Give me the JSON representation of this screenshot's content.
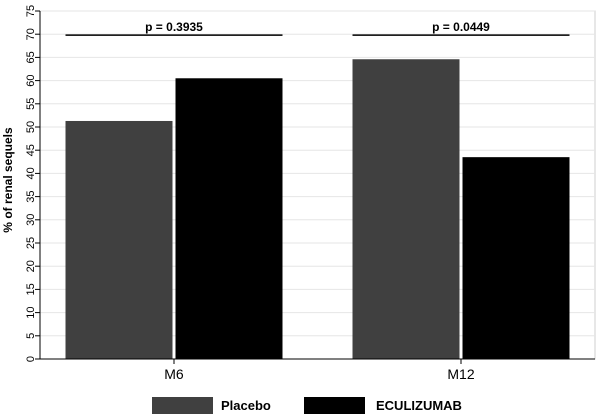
{
  "chart_data": {
    "type": "bar",
    "categories": [
      "M6",
      "M12"
    ],
    "series": [
      {
        "name": "Placebo",
        "values": [
          51.3,
          64.6
        ],
        "color": "#404040"
      },
      {
        "name": "ECULIZUMAB",
        "values": [
          60.5,
          43.5
        ],
        "color": "#000000"
      }
    ],
    "ylabel": "% of renal sequels",
    "xlabel": "",
    "ylim": [
      0,
      75
    ],
    "yticks": [
      0,
      5,
      10,
      15,
      20,
      25,
      30,
      35,
      40,
      45,
      50,
      55,
      60,
      65,
      70,
      75
    ],
    "grid": true,
    "legend_position": "bottom",
    "annotations": [
      {
        "category": "M6",
        "text": "p = 0.3935",
        "y": 69.8
      },
      {
        "category": "M12",
        "text": "p = 0.0449",
        "y": 69.8
      }
    ]
  }
}
